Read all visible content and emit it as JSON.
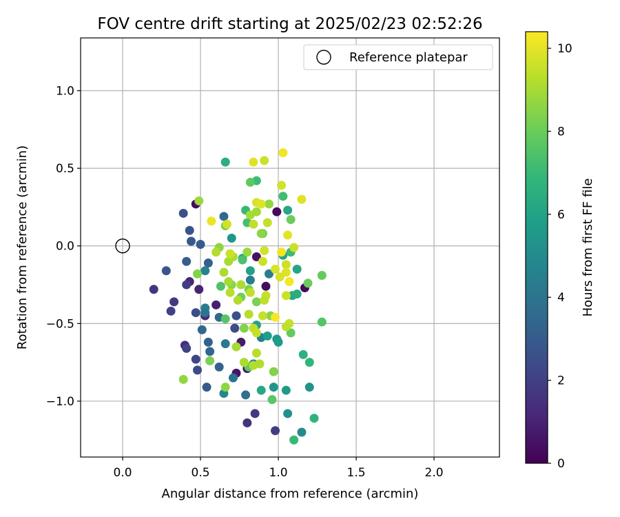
{
  "chart_data": {
    "type": "scatter",
    "title": "FOV centre drift starting at 2025/02/23 02:52:26",
    "xlabel": "Angular distance from reference (arcmin)",
    "ylabel": "Rotation from reference (arcmin)",
    "xlim": [
      -0.27,
      2.42
    ],
    "ylim": [
      -1.36,
      1.34
    ],
    "xticks": [
      {
        "value": 0.0,
        "label": "0.0"
      },
      {
        "value": 0.5,
        "label": "0.5"
      },
      {
        "value": 1.0,
        "label": "1.0"
      },
      {
        "value": 1.5,
        "label": "1.5"
      },
      {
        "value": 2.0,
        "label": "2.0"
      }
    ],
    "yticks": [
      {
        "value": -1.0,
        "label": "−1.0"
      },
      {
        "value": -0.5,
        "label": "−0.5"
      },
      {
        "value": 0.0,
        "label": "0.0"
      },
      {
        "value": 0.5,
        "label": "0.5"
      },
      {
        "value": 1.0,
        "label": "1.0"
      }
    ],
    "grid": true,
    "legend": {
      "placement": "top-right",
      "entries": [
        {
          "label": "Reference platepar",
          "marker": "open-circle"
        }
      ]
    },
    "reference_point": {
      "x": 0.0,
      "y": 0.0
    },
    "colorbar": {
      "label": "Hours from first FF file",
      "colormap": "viridis",
      "range": [
        0,
        10.4
      ],
      "ticks": [
        {
          "value": 0,
          "label": "0"
        },
        {
          "value": 2,
          "label": "2"
        },
        {
          "value": 4,
          "label": "4"
        },
        {
          "value": 6,
          "label": "6"
        },
        {
          "value": 8,
          "label": "8"
        },
        {
          "value": 10,
          "label": "10"
        }
      ],
      "colors": [
        "#440154",
        "#482878",
        "#3e4989",
        "#31688e",
        "#26828e",
        "#1f9e89",
        "#35b779",
        "#6ece58",
        "#b5de2b",
        "#fde725"
      ]
    },
    "points": [
      {
        "x": 0.47,
        "y": 0.27,
        "hours": 0.3
      },
      {
        "x": 0.99,
        "y": 0.22,
        "hours": 0.2
      },
      {
        "x": 0.92,
        "y": -0.26,
        "hours": 0.4
      },
      {
        "x": 0.86,
        "y": -0.07,
        "hours": 0.5
      },
      {
        "x": 1.17,
        "y": -0.27,
        "hours": 0.3
      },
      {
        "x": 0.73,
        "y": -0.82,
        "hours": 0.6
      },
      {
        "x": 0.8,
        "y": -0.79,
        "hours": 0.7
      },
      {
        "x": 0.76,
        "y": -0.62,
        "hours": 0.8
      },
      {
        "x": 0.6,
        "y": -0.38,
        "hours": 0.9
      },
      {
        "x": 0.49,
        "y": -0.28,
        "hours": 1.0
      },
      {
        "x": 0.43,
        "y": -0.23,
        "hours": 1.1
      },
      {
        "x": 0.53,
        "y": -0.45,
        "hours": 1.2
      },
      {
        "x": 0.4,
        "y": -0.64,
        "hours": 1.3
      },
      {
        "x": 0.2,
        "y": -0.28,
        "hours": 1.6
      },
      {
        "x": 0.33,
        "y": -0.36,
        "hours": 1.8
      },
      {
        "x": 0.41,
        "y": -0.25,
        "hours": 1.9
      },
      {
        "x": 0.31,
        "y": -0.42,
        "hours": 2.0
      },
      {
        "x": 0.47,
        "y": -0.73,
        "hours": 2.2
      },
      {
        "x": 0.48,
        "y": -0.8,
        "hours": 2.3
      },
      {
        "x": 0.41,
        "y": -0.66,
        "hours": 2.1
      },
      {
        "x": 0.8,
        "y": -1.14,
        "hours": 1.5
      },
      {
        "x": 0.85,
        "y": -1.08,
        "hours": 1.7
      },
      {
        "x": 0.98,
        "y": -1.19,
        "hours": 1.9
      },
      {
        "x": 0.72,
        "y": -0.53,
        "hours": 2.4
      },
      {
        "x": 0.47,
        "y": -0.43,
        "hours": 2.5
      },
      {
        "x": 0.73,
        "y": -0.45,
        "hours": 2.6
      },
      {
        "x": 0.28,
        "y": -0.16,
        "hours": 2.8
      },
      {
        "x": 0.43,
        "y": 0.1,
        "hours": 2.7
      },
      {
        "x": 0.39,
        "y": 0.21,
        "hours": 2.6
      },
      {
        "x": 0.44,
        "y": 0.03,
        "hours": 2.9
      },
      {
        "x": 0.5,
        "y": 0.01,
        "hours": 3.0
      },
      {
        "x": 0.41,
        "y": -0.1,
        "hours": 3.1
      },
      {
        "x": 0.55,
        "y": -0.11,
        "hours": 3.2
      },
      {
        "x": 0.54,
        "y": -0.91,
        "hours": 3.0
      },
      {
        "x": 0.62,
        "y": -0.78,
        "hours": 3.3
      },
      {
        "x": 0.56,
        "y": -0.68,
        "hours": 3.4
      },
      {
        "x": 0.55,
        "y": -0.62,
        "hours": 3.2
      },
      {
        "x": 0.51,
        "y": -0.54,
        "hours": 3.5
      },
      {
        "x": 0.62,
        "y": -0.46,
        "hours": 3.6
      },
      {
        "x": 0.65,
        "y": 0.19,
        "hours": 3.5
      },
      {
        "x": 0.79,
        "y": -0.96,
        "hours": 3.8
      },
      {
        "x": 0.71,
        "y": -0.85,
        "hours": 4.0
      },
      {
        "x": 0.66,
        "y": -0.63,
        "hours": 4.2
      },
      {
        "x": 0.53,
        "y": -0.4,
        "hours": 4.4
      },
      {
        "x": 0.53,
        "y": -0.43,
        "hours": 4.1
      },
      {
        "x": 0.82,
        "y": -0.22,
        "hours": 4.3
      },
      {
        "x": 0.94,
        "y": -0.18,
        "hours": 4.5
      },
      {
        "x": 0.53,
        "y": -0.16,
        "hours": 4.6
      },
      {
        "x": 0.65,
        "y": -0.95,
        "hours": 4.8
      },
      {
        "x": 0.89,
        "y": -0.59,
        "hours": 4.6
      },
      {
        "x": 0.84,
        "y": -0.76,
        "hours": 4.9
      },
      {
        "x": 1.15,
        "y": -1.2,
        "hours": 5.0
      },
      {
        "x": 1.06,
        "y": -1.08,
        "hours": 5.2
      },
      {
        "x": 0.97,
        "y": -0.91,
        "hours": 5.4
      },
      {
        "x": 1.2,
        "y": -0.91,
        "hours": 5.3
      },
      {
        "x": 1.05,
        "y": -0.93,
        "hours": 5.6
      },
      {
        "x": 0.99,
        "y": -0.6,
        "hours": 5.5
      },
      {
        "x": 1.0,
        "y": -0.62,
        "hours": 5.7
      },
      {
        "x": 0.93,
        "y": -0.58,
        "hours": 5.8
      },
      {
        "x": 0.7,
        "y": 0.05,
        "hours": 5.5
      },
      {
        "x": 0.77,
        "y": -0.08,
        "hours": 5.9
      },
      {
        "x": 0.82,
        "y": -0.16,
        "hours": 5.9
      },
      {
        "x": 1.03,
        "y": -0.06,
        "hours": 6.0
      },
      {
        "x": 1.12,
        "y": -0.15,
        "hours": 6.1
      },
      {
        "x": 1.06,
        "y": 0.23,
        "hours": 6.2
      },
      {
        "x": 0.86,
        "y": -0.51,
        "hours": 6.0
      },
      {
        "x": 0.89,
        "y": -0.93,
        "hours": 6.2
      },
      {
        "x": 1.09,
        "y": -0.32,
        "hours": 6.3
      },
      {
        "x": 1.12,
        "y": -0.31,
        "hours": 6.4
      },
      {
        "x": 0.66,
        "y": 0.54,
        "hours": 6.5
      },
      {
        "x": 1.16,
        "y": -0.7,
        "hours": 6.6
      },
      {
        "x": 1.2,
        "y": -0.75,
        "hours": 6.8
      },
      {
        "x": 1.23,
        "y": -1.11,
        "hours": 6.7
      },
      {
        "x": 1.1,
        "y": -1.25,
        "hours": 7.0
      },
      {
        "x": 1.08,
        "y": -0.04,
        "hours": 7.1
      },
      {
        "x": 1.03,
        "y": 0.32,
        "hours": 7.2
      },
      {
        "x": 0.86,
        "y": 0.42,
        "hours": 7.1
      },
      {
        "x": 0.79,
        "y": 0.23,
        "hours": 7.0
      },
      {
        "x": 0.8,
        "y": 0.15,
        "hours": 7.3
      },
      {
        "x": 0.77,
        "y": -0.09,
        "hours": 7.4
      },
      {
        "x": 0.63,
        "y": -0.26,
        "hours": 7.5
      },
      {
        "x": 0.66,
        "y": -0.47,
        "hours": 7.6
      },
      {
        "x": 0.81,
        "y": -0.78,
        "hours": 7.8
      },
      {
        "x": 0.96,
        "y": -0.99,
        "hours": 7.7
      },
      {
        "x": 1.28,
        "y": -0.49,
        "hours": 7.6
      },
      {
        "x": 1.28,
        "y": -0.19,
        "hours": 7.9
      },
      {
        "x": 1.19,
        "y": -0.24,
        "hours": 8.0
      },
      {
        "x": 1.08,
        "y": -0.56,
        "hours": 7.9
      },
      {
        "x": 1.08,
        "y": 0.17,
        "hours": 8.0
      },
      {
        "x": 0.9,
        "y": 0.08,
        "hours": 8.1
      },
      {
        "x": 0.81,
        "y": -0.28,
        "hours": 8.2
      },
      {
        "x": 0.76,
        "y": -0.33,
        "hours": 8.1
      },
      {
        "x": 0.66,
        "y": 0.13,
        "hours": 8.2
      },
      {
        "x": 0.56,
        "y": -0.74,
        "hours": 8.3
      },
      {
        "x": 0.48,
        "y": -0.18,
        "hours": 8.4
      },
      {
        "x": 0.82,
        "y": 0.41,
        "hours": 7.8
      },
      {
        "x": 0.62,
        "y": -0.01,
        "hours": 8.6
      },
      {
        "x": 0.7,
        "y": -0.25,
        "hours": 8.5
      },
      {
        "x": 0.78,
        "y": -0.53,
        "hours": 8.4
      },
      {
        "x": 0.86,
        "y": -0.36,
        "hours": 8.3
      },
      {
        "x": 0.97,
        "y": -0.81,
        "hours": 8.4
      },
      {
        "x": 0.66,
        "y": -0.91,
        "hours": 8.6
      },
      {
        "x": 0.39,
        "y": -0.86,
        "hours": 8.7
      },
      {
        "x": 0.49,
        "y": 0.29,
        "hours": 8.8
      },
      {
        "x": 0.95,
        "y": -0.45,
        "hours": 8.5
      },
      {
        "x": 0.89,
        "y": 0.08,
        "hours": 8.6
      },
      {
        "x": 0.94,
        "y": 0.27,
        "hours": 8.7
      },
      {
        "x": 0.82,
        "y": 0.2,
        "hours": 9.0
      },
      {
        "x": 0.86,
        "y": 0.22,
        "hours": 8.9
      },
      {
        "x": 0.8,
        "y": -0.04,
        "hours": 8.8
      },
      {
        "x": 0.68,
        "y": -0.1,
        "hours": 9.0
      },
      {
        "x": 0.71,
        "y": -0.07,
        "hours": 9.1
      },
      {
        "x": 0.68,
        "y": -0.23,
        "hours": 9.0
      },
      {
        "x": 0.65,
        "y": -0.17,
        "hours": 9.1
      },
      {
        "x": 0.6,
        "y": -0.04,
        "hours": 9.2
      },
      {
        "x": 0.76,
        "y": -0.25,
        "hours": 9.1
      },
      {
        "x": 0.74,
        "y": -0.35,
        "hours": 9.2
      },
      {
        "x": 0.69,
        "y": -0.3,
        "hours": 9.3
      },
      {
        "x": 0.81,
        "y": -0.44,
        "hours": 9.3
      },
      {
        "x": 0.82,
        "y": -0.3,
        "hours": 9.4
      },
      {
        "x": 0.84,
        "y": -0.53,
        "hours": 9.4
      },
      {
        "x": 0.86,
        "y": -0.56,
        "hours": 9.5
      },
      {
        "x": 0.88,
        "y": -0.76,
        "hours": 9.2
      },
      {
        "x": 0.78,
        "y": -0.75,
        "hours": 9.1
      },
      {
        "x": 0.84,
        "y": -0.77,
        "hours": 9.2
      },
      {
        "x": 0.86,
        "y": -0.69,
        "hours": 9.3
      },
      {
        "x": 0.73,
        "y": -0.65,
        "hours": 9.0
      },
      {
        "x": 0.93,
        "y": 0.15,
        "hours": 9.5
      },
      {
        "x": 0.91,
        "y": 0.55,
        "hours": 9.6
      },
      {
        "x": 0.84,
        "y": 0.14,
        "hours": 9.4
      },
      {
        "x": 0.92,
        "y": -0.32,
        "hours": 9.5
      },
      {
        "x": 0.91,
        "y": -0.35,
        "hours": 9.4
      },
      {
        "x": 0.9,
        "y": -0.1,
        "hours": 9.6
      },
      {
        "x": 0.9,
        "y": -0.45,
        "hours": 9.5
      },
      {
        "x": 1.05,
        "y": -0.32,
        "hours": 9.6
      },
      {
        "x": 1.05,
        "y": -0.12,
        "hours": 9.6
      },
      {
        "x": 1.07,
        "y": -0.5,
        "hours": 9.5
      },
      {
        "x": 1.05,
        "y": -0.52,
        "hours": 9.4
      },
      {
        "x": 1.1,
        "y": -0.01,
        "hours": 9.6
      },
      {
        "x": 0.67,
        "y": 0.14,
        "hours": 9.7
      },
      {
        "x": 0.69,
        "y": -0.05,
        "hours": 9.6
      },
      {
        "x": 0.91,
        "y": -0.03,
        "hours": 9.7
      },
      {
        "x": 0.98,
        "y": -0.15,
        "hours": 9.8
      },
      {
        "x": 0.86,
        "y": 0.28,
        "hours": 9.8
      },
      {
        "x": 1.02,
        "y": 0.39,
        "hours": 9.7
      },
      {
        "x": 1.15,
        "y": 0.3,
        "hours": 9.9
      },
      {
        "x": 1.06,
        "y": 0.07,
        "hours": 10.0
      },
      {
        "x": 1.05,
        "y": -0.17,
        "hours": 9.9
      },
      {
        "x": 1.01,
        "y": -0.2,
        "hours": 9.8
      },
      {
        "x": 0.84,
        "y": 0.54,
        "hours": 9.9
      },
      {
        "x": 0.89,
        "y": 0.27,
        "hours": 9.9
      },
      {
        "x": 1.03,
        "y": 0.6,
        "hours": 10.2
      },
      {
        "x": 0.57,
        "y": 0.16,
        "hours": 10.1
      },
      {
        "x": 1.02,
        "y": -0.04,
        "hours": 10.2
      },
      {
        "x": 0.98,
        "y": -0.46,
        "hours": 10.3
      },
      {
        "x": 1.07,
        "y": -0.23,
        "hours": 10.3
      }
    ]
  }
}
